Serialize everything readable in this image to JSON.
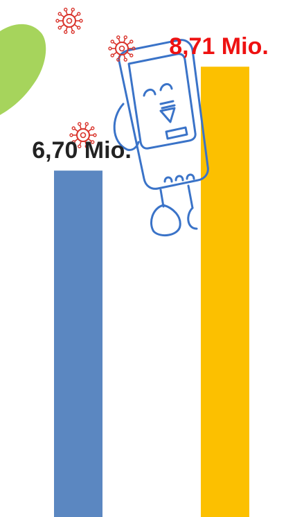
{
  "chart_data": {
    "type": "bar",
    "categories": [
      "",
      ""
    ],
    "values": [
      6.7,
      8.71
    ],
    "data_labels": [
      "6,70 Mio.",
      "8,71 Mio."
    ],
    "bar_colors": [
      "#5b87c1",
      "#fcc000"
    ],
    "label_colors": [
      "#222222",
      "#ee1111"
    ],
    "ylim": [
      0,
      10
    ],
    "grid": false,
    "legend": "none"
  },
  "decorations": {
    "green_blob_color": "#a6d45c",
    "virus_color": "#d9332b",
    "mascot_line_color": "#3a73c8",
    "mascot_icon": "smartphone-mascot-icon",
    "virus_icon": "virus-icon"
  }
}
